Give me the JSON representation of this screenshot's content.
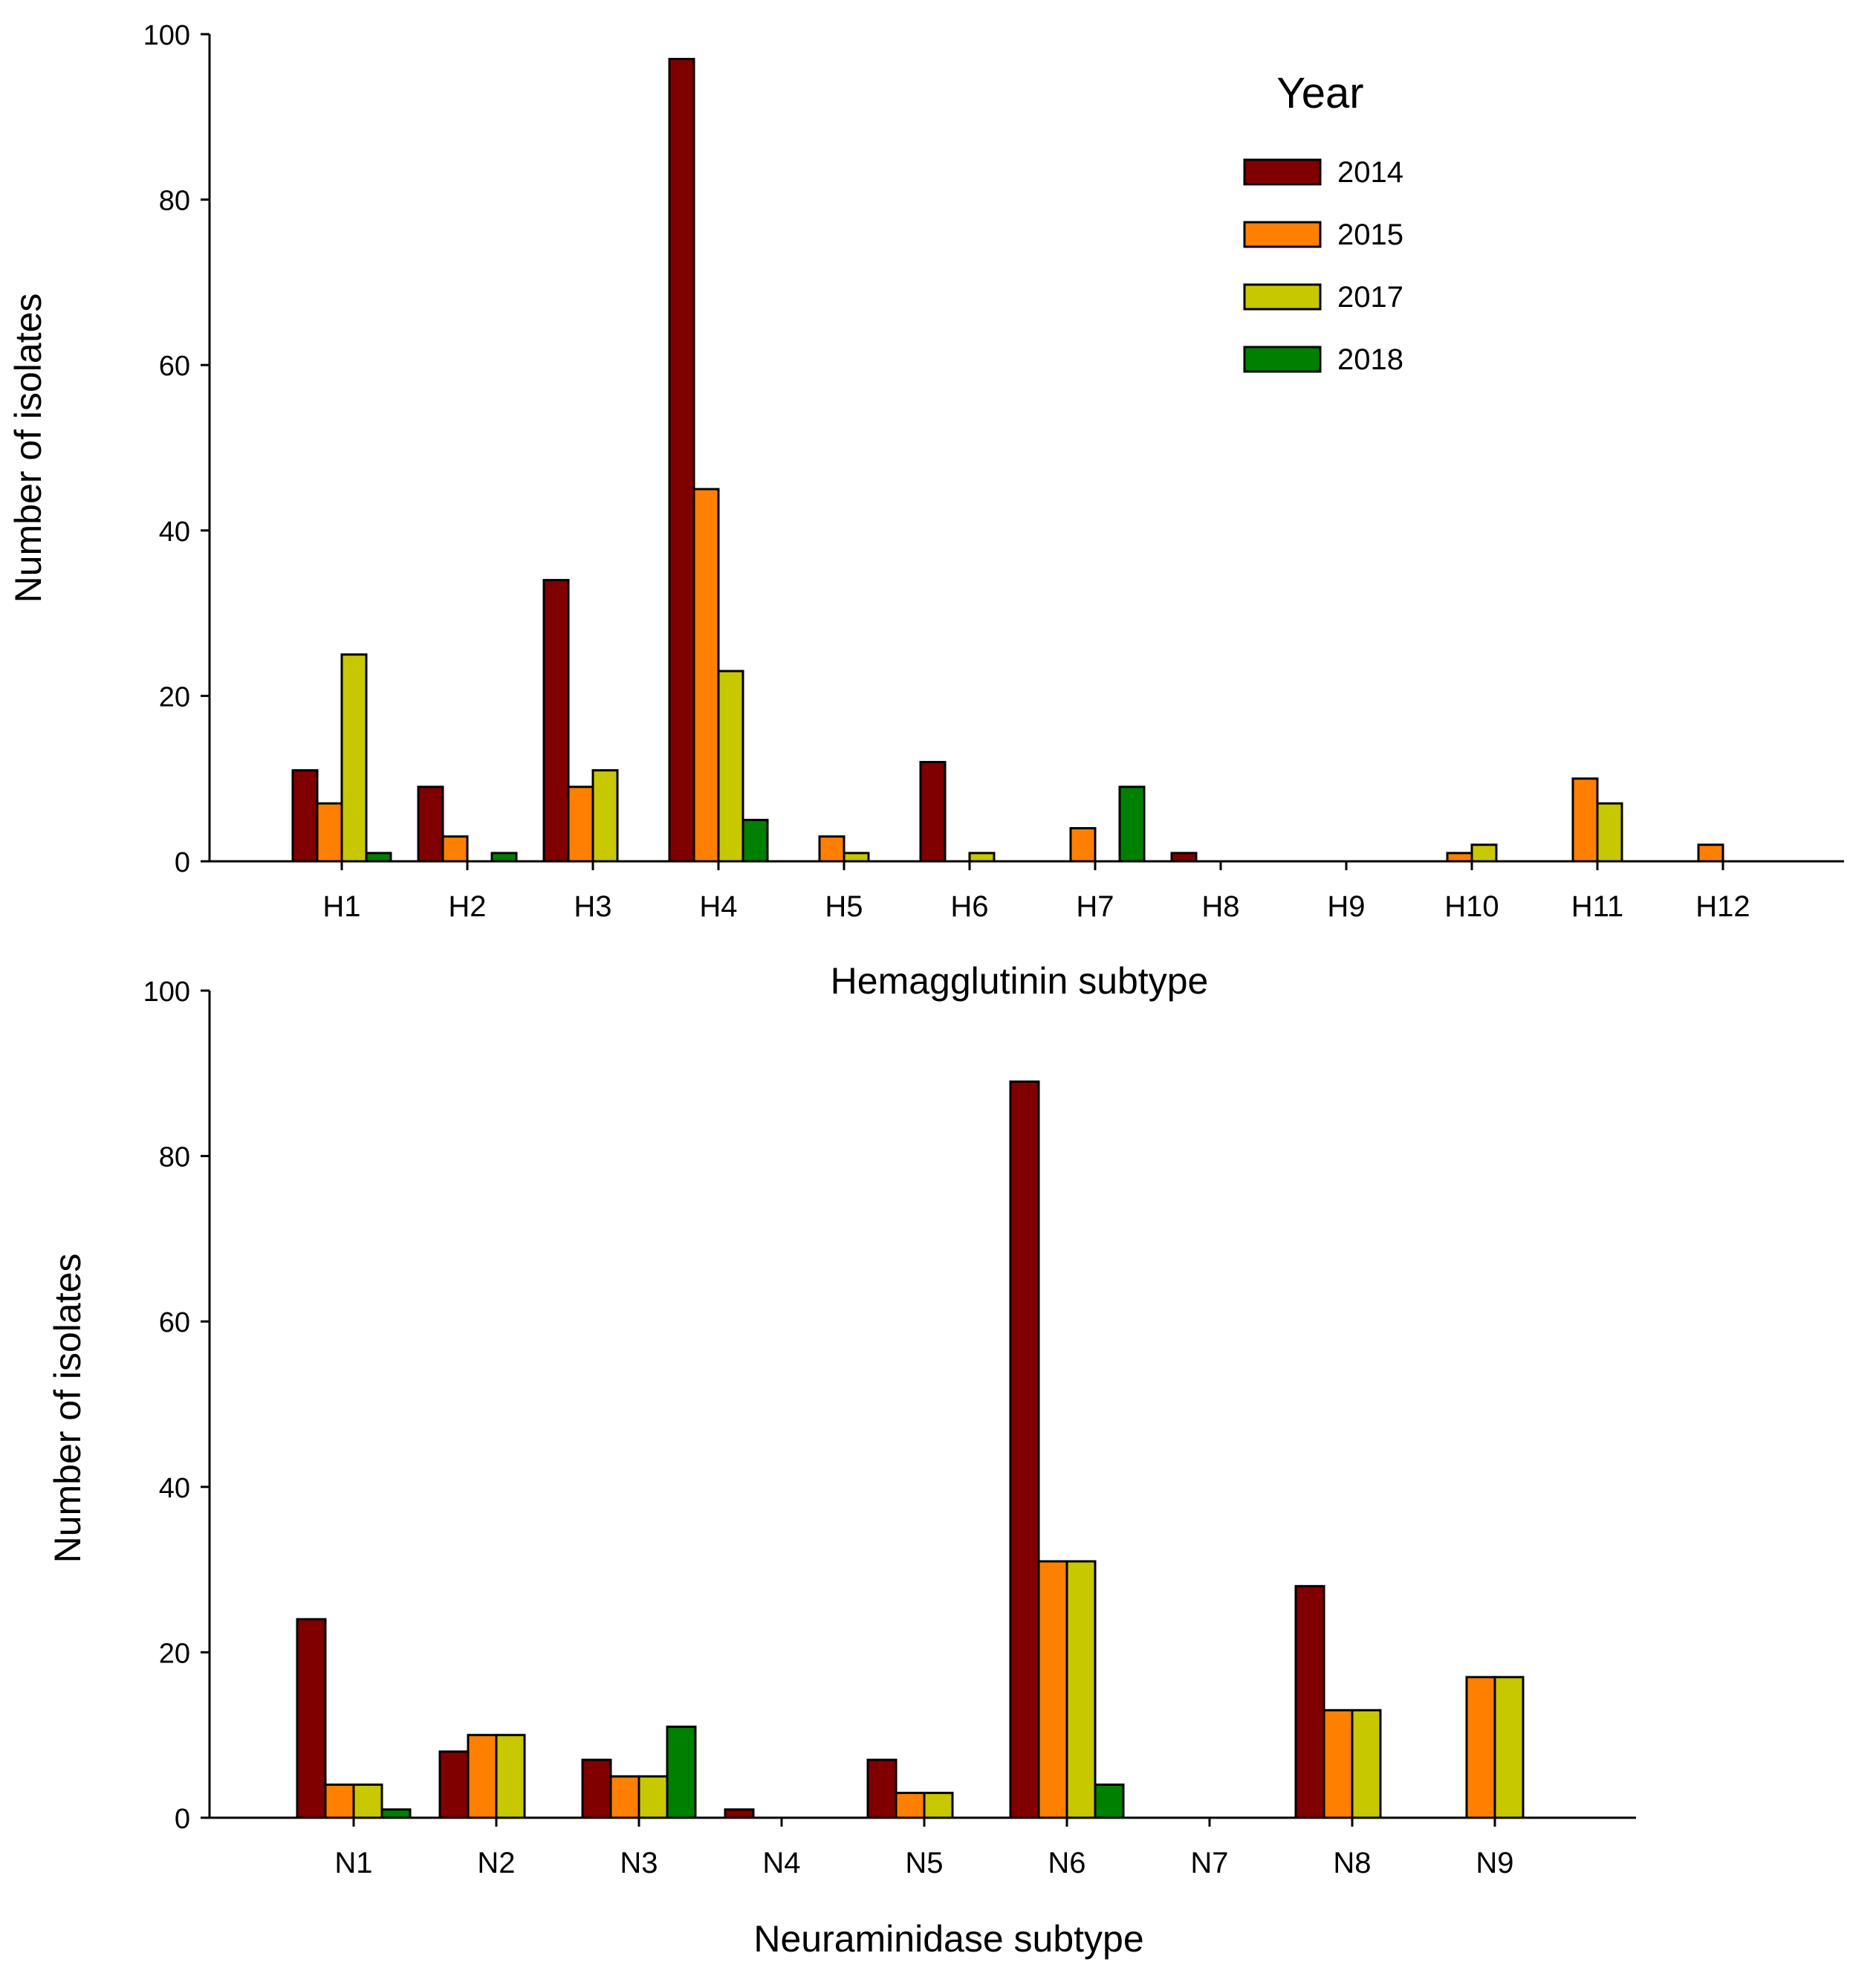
{
  "legend": {
    "title": "Year",
    "entries": [
      {
        "label": "2014",
        "color": "#800000"
      },
      {
        "label": "2015",
        "color": "#ff8000"
      },
      {
        "label": "2017",
        "color": "#c8c800"
      },
      {
        "label": "2018",
        "color": "#008000"
      }
    ]
  },
  "chart_data": [
    {
      "type": "bar",
      "title": "",
      "xlabel": "Hemagglutinin subtype",
      "ylabel": "Number of isolates",
      "ylim": [
        0,
        100
      ],
      "yticks": [
        0,
        20,
        40,
        60,
        80,
        100
      ],
      "categories": [
        "H1",
        "H2",
        "H3",
        "H4",
        "H5",
        "H6",
        "H7",
        "H8",
        "H9",
        "H10",
        "H11",
        "H12"
      ],
      "series": [
        {
          "name": "2014",
          "values": [
            11,
            9,
            34,
            97,
            0,
            12,
            0,
            1,
            0,
            0,
            0,
            0
          ]
        },
        {
          "name": "2015",
          "values": [
            7,
            3,
            9,
            45,
            3,
            0,
            4,
            0,
            0,
            1,
            10,
            2
          ]
        },
        {
          "name": "2017",
          "values": [
            25,
            0,
            11,
            23,
            1,
            1,
            0,
            0,
            0,
            2,
            7,
            0
          ]
        },
        {
          "name": "2018",
          "values": [
            1,
            1,
            0,
            5,
            0,
            0,
            9,
            0,
            0,
            0,
            0,
            0
          ]
        }
      ],
      "legend_position": "top-right"
    },
    {
      "type": "bar",
      "title": "",
      "xlabel": "Neuraminidase subtype",
      "ylabel": "Number of isolates",
      "ylim": [
        0,
        100
      ],
      "yticks": [
        0,
        20,
        40,
        60,
        80,
        100
      ],
      "categories": [
        "N1",
        "N2",
        "N3",
        "N4",
        "N5",
        "N6",
        "N7",
        "N8",
        "N9"
      ],
      "series": [
        {
          "name": "2014",
          "values": [
            24,
            8,
            7,
            1,
            7,
            89,
            0,
            28,
            0
          ]
        },
        {
          "name": "2015",
          "values": [
            4,
            10,
            5,
            0,
            3,
            31,
            0,
            13,
            17
          ]
        },
        {
          "name": "2017",
          "values": [
            4,
            10,
            5,
            0,
            3,
            31,
            0,
            13,
            17
          ]
        },
        {
          "name": "2018",
          "values": [
            1,
            0,
            11,
            0,
            0,
            4,
            0,
            0,
            0
          ]
        }
      ]
    }
  ]
}
